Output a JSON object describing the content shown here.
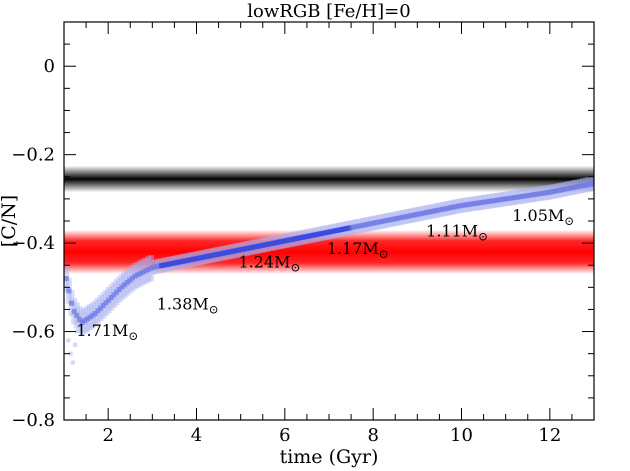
{
  "chart_data": {
    "type": "scatter",
    "title": "lowRGB [Fe/H]=0",
    "xlabel": "time (Gyr)",
    "ylabel": "[C/N]",
    "xlim": [
      1.0,
      13.0
    ],
    "ylim": [
      -0.8,
      0.1
    ],
    "xticks": [
      2,
      4,
      6,
      8,
      10,
      12
    ],
    "xtick_labels": [
      "2",
      "4",
      "6",
      "8",
      "10",
      "12"
    ],
    "yticks": [
      0,
      -0.2,
      -0.4,
      -0.6,
      -0.8
    ],
    "ytick_labels": [
      "0",
      "−0.2",
      "−0.4",
      "−0.6",
      "−0.8"
    ],
    "bands": [
      {
        "color": "#000000",
        "center": -0.255,
        "halfwidth": 0.03
      },
      {
        "color": "#ff0000",
        "center": -0.42,
        "halfwidth": 0.05
      }
    ],
    "track": [
      {
        "x": 1.05,
        "y": -0.48
      },
      {
        "x": 1.2,
        "y": -0.55
      },
      {
        "x": 1.4,
        "y": -0.58
      },
      {
        "x": 1.7,
        "y": -0.56
      },
      {
        "x": 2.0,
        "y": -0.53
      },
      {
        "x": 2.3,
        "y": -0.5
      },
      {
        "x": 2.6,
        "y": -0.475
      },
      {
        "x": 3.0,
        "y": -0.455
      },
      {
        "x": 3.5,
        "y": -0.445
      },
      {
        "x": 4.0,
        "y": -0.435
      },
      {
        "x": 5.0,
        "y": -0.415
      },
      {
        "x": 6.0,
        "y": -0.395
      },
      {
        "x": 7.0,
        "y": -0.375
      },
      {
        "x": 8.0,
        "y": -0.355
      },
      {
        "x": 9.0,
        "y": -0.335
      },
      {
        "x": 10.0,
        "y": -0.315
      },
      {
        "x": 11.0,
        "y": -0.3
      },
      {
        "x": 12.0,
        "y": -0.285
      },
      {
        "x": 13.0,
        "y": -0.265
      }
    ],
    "track_color": "#3a4be0",
    "annotations": [
      {
        "prefix": "1.71M",
        "x": 1.28,
        "y": -0.61
      },
      {
        "prefix": "1.38M",
        "x": 3.1,
        "y": -0.55
      },
      {
        "prefix": "1.24M",
        "x": 4.95,
        "y": -0.455
      },
      {
        "prefix": "1.17M",
        "x": 6.95,
        "y": -0.425
      },
      {
        "prefix": "1.11M",
        "x": 9.2,
        "y": -0.385
      },
      {
        "prefix": "1.05M",
        "x": 11.15,
        "y": -0.35
      }
    ],
    "sun_symbol": "⊙"
  }
}
